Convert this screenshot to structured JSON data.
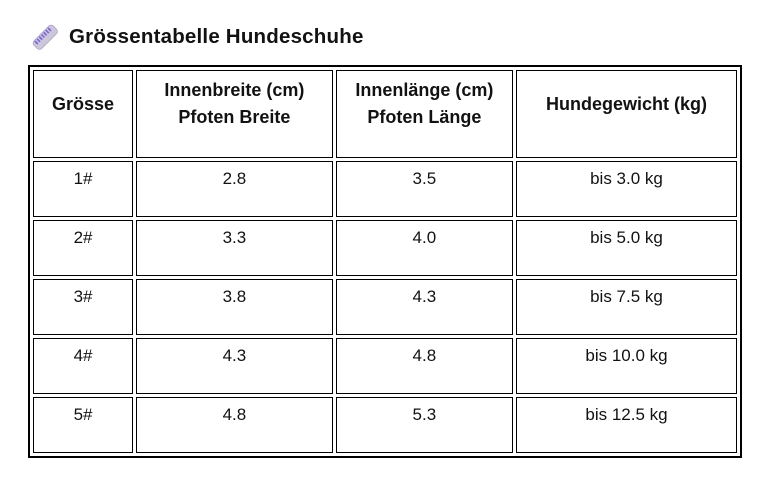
{
  "title": {
    "text": "Grössentabelle Hundeschuhe",
    "icon": "ruler-icon"
  },
  "colors": {
    "background": "#ffffff",
    "text": "#121212",
    "table_border": "#000000",
    "ruler_body": "#cdc7db",
    "ruler_body_stroke": "#a89fc0",
    "ruler_ticks": "#7d66d6"
  },
  "table": {
    "columns": [
      {
        "id": "groesse",
        "label": "Grösse"
      },
      {
        "id": "innenbreite",
        "label": "Innenbreite (cm)\nPfoten Breite"
      },
      {
        "id": "innenlaenge",
        "label": "Innenlänge (cm)\nPfoten Länge"
      },
      {
        "id": "hundegewicht",
        "label": "Hundegewicht (kg)"
      }
    ],
    "rows": [
      {
        "cells": [
          "1#",
          "2.8",
          "3.5",
          "bis 3.0 kg"
        ]
      },
      {
        "cells": [
          "2#",
          "3.3",
          "4.0",
          "bis 5.0 kg"
        ]
      },
      {
        "cells": [
          "3#",
          "3.8",
          "4.3",
          "bis 7.5 kg"
        ]
      },
      {
        "cells": [
          "4#",
          "4.3",
          "4.8",
          "bis 10.0 kg"
        ]
      },
      {
        "cells": [
          "5#",
          "4.8",
          "5.3",
          "bis 12.5 kg"
        ]
      }
    ]
  }
}
